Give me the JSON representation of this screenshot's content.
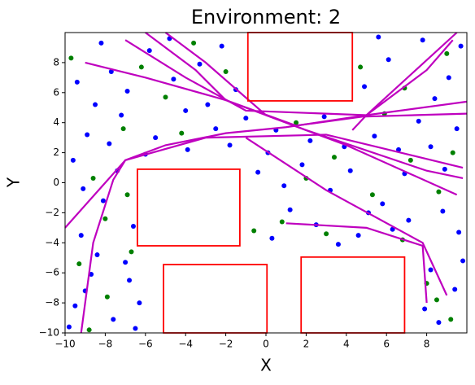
{
  "chart_data": {
    "type": "scatter",
    "title": "Environment: 2",
    "x_label": "X",
    "y_label": "Y",
    "xlim": [
      -10,
      10
    ],
    "ylim": [
      -10,
      10
    ],
    "xticks": [
      {
        "value": -10,
        "label": "−10"
      },
      {
        "value": -8,
        "label": "−8"
      },
      {
        "value": -6,
        "label": "−6"
      },
      {
        "value": -4,
        "label": "−4"
      },
      {
        "value": -2,
        "label": "−2"
      },
      0,
      2,
      4,
      6,
      8
    ],
    "yticks": [
      {
        "value": -10,
        "label": "−10"
      },
      {
        "value": -8,
        "label": "−8"
      },
      {
        "value": -6,
        "label": "−6"
      },
      {
        "value": -4,
        "label": "−4"
      },
      {
        "value": -2,
        "label": "−2"
      },
      0,
      2,
      4,
      6,
      8
    ],
    "series": [
      {
        "color": "#0000ff",
        "x": [
          -9.5,
          -8.7,
          -9.2,
          -8.1,
          -7.4,
          -9.6,
          -6.8,
          -7.6,
          -6.3,
          -8.9,
          -7.2,
          -5.5,
          -4.0,
          -2.5,
          -1.5,
          -3.3,
          -5.8,
          -8.2,
          -9.4,
          -6.9,
          -4.6,
          -2.2,
          -1.8,
          -3.9,
          -6.0,
          0.5,
          1.8,
          3.2,
          2.5,
          4.6,
          5.8,
          6.9,
          8.2,
          9.5,
          7.6,
          5.4,
          3.9,
          1.2,
          0.3,
          2.9,
          6.3,
          8.8,
          9.6,
          4.9,
          6.1,
          7.8,
          9.1,
          8.4,
          5.6,
          9.7,
          8.2,
          9.4,
          8.6,
          9.8,
          7.9,
          -9.8,
          -8.4,
          -6.6,
          -9.1,
          -7.8,
          -0.4,
          0.9,
          2.2,
          4.2,
          5.1,
          7.1,
          6.6,
          -2.9,
          -4.8,
          -7.7,
          -1.0,
          0.1,
          3.6,
          8.9,
          -9.0,
          -7.0,
          -6.5,
          -8.5
        ],
        "y": [
          -8.2,
          -6.1,
          -3.5,
          -1.2,
          0.8,
          1.5,
          -6.5,
          -9.1,
          -8.0,
          3.2,
          4.5,
          3.0,
          4.8,
          3.6,
          6.2,
          7.9,
          8.8,
          9.3,
          6.7,
          6.1,
          6.9,
          9.1,
          2.5,
          2.2,
          1.9,
          3.5,
          1.2,
          -0.5,
          -2.8,
          -3.5,
          -1.4,
          0.6,
          2.4,
          3.6,
          4.1,
          3.1,
          2.4,
          -1.8,
          -3.7,
          4.4,
          -3.1,
          -1.9,
          -3.3,
          6.4,
          8.2,
          9.5,
          7.0,
          5.6,
          9.7,
          9.1,
          -5.8,
          -7.1,
          -9.3,
          -5.2,
          -8.4,
          -9.6,
          -4.8,
          -2.9,
          -0.4,
          2.6,
          0.7,
          -0.2,
          2.8,
          0.8,
          -2.0,
          -2.5,
          2.2,
          5.2,
          9.6,
          7.4,
          4.3,
          2.0,
          -4.1,
          0.9,
          -7.2,
          -5.3,
          -9.7,
          5.2
        ]
      },
      {
        "color": "#008000",
        "x": [
          -9.3,
          -7.9,
          -6.7,
          -8.6,
          -7.1,
          -5.0,
          -3.6,
          -2.0,
          -9.7,
          -6.2,
          0.8,
          2.0,
          3.4,
          5.3,
          6.8,
          8.6,
          9.3,
          7.2,
          4.7,
          6.9,
          9.0,
          8.5,
          9.2,
          8.0,
          -8.8,
          -6.9,
          1.5,
          -4.2,
          -0.6,
          5.9,
          -8.0,
          3.0
        ],
        "y": [
          -5.4,
          -7.6,
          -4.6,
          0.3,
          3.6,
          5.7,
          9.3,
          7.4,
          8.3,
          7.7,
          -2.6,
          0.3,
          1.7,
          -0.8,
          -3.8,
          -0.6,
          2.0,
          1.5,
          7.7,
          6.3,
          8.6,
          -7.8,
          -9.1,
          -6.7,
          -9.8,
          -0.8,
          4.0,
          3.3,
          -3.2,
          4.6,
          -2.4,
          -3.4
        ]
      }
    ],
    "paths": {
      "color": "#bf00bf",
      "lines": [
        {
          "x": [
            -9.2,
            -8.6,
            -7.6,
            -7.0,
            -5.0,
            -2.0,
            1.0,
            5.0,
            8.0,
            9.3
          ],
          "y": [
            -10,
            -4.0,
            0.2,
            1.5,
            2.5,
            3.3,
            3.7,
            4.5,
            7.5,
            9.5
          ]
        },
        {
          "x": [
            -9.0,
            -6.0,
            -2.0,
            2.0,
            8.0,
            9.8
          ],
          "y": [
            8.0,
            7.0,
            5.5,
            3.5,
            0.8,
            0.3
          ]
        },
        {
          "x": [
            -7.0,
            -4.0,
            -1.0,
            5.0,
            10.0
          ],
          "y": [
            9.5,
            7.0,
            4.8,
            4.5,
            5.4
          ]
        },
        {
          "x": [
            -10.0,
            -8.0,
            -7.0,
            -3.0,
            3.0,
            9.8
          ],
          "y": [
            -3.0,
            0.0,
            1.5,
            3.0,
            3.2,
            1.0
          ]
        },
        {
          "x": [
            -5.0,
            -3.0,
            0.0,
            4.0,
            9.5
          ],
          "y": [
            10.0,
            8.0,
            4.5,
            2.5,
            -0.8
          ]
        },
        {
          "x": [
            -1.0,
            3.0,
            7.8,
            9.0
          ],
          "y": [
            3.0,
            -0.5,
            -4.0,
            -7.5
          ]
        },
        {
          "x": [
            1.0,
            5.0,
            7.8,
            8.0
          ],
          "y": [
            -2.7,
            -3.0,
            -4.2,
            -8.0
          ]
        },
        {
          "x": [
            9.5,
            5.0,
            4.3
          ],
          "y": [
            10.0,
            4.5,
            3.5
          ]
        },
        {
          "x": [
            -6.0,
            -3.5,
            -2.0,
            1.5,
            4.8,
            10.0
          ],
          "y": [
            10.0,
            7.5,
            5.5,
            3.8,
            4.4,
            4.6
          ]
        }
      ]
    },
    "obstacles": {
      "color": "#ff0000",
      "rects": [
        {
          "x": [
            -0.9,
            4.3
          ],
          "y": [
            5.45,
            10
          ]
        },
        {
          "x": [
            -6.4,
            -1.3
          ],
          "y": [
            -4.2,
            0.9
          ]
        },
        {
          "x": [
            -5.1,
            0.05
          ],
          "y": [
            -10,
            -5.45
          ]
        },
        {
          "x": [
            1.75,
            6.9
          ],
          "y": [
            -10,
            -4.95
          ]
        }
      ]
    }
  }
}
